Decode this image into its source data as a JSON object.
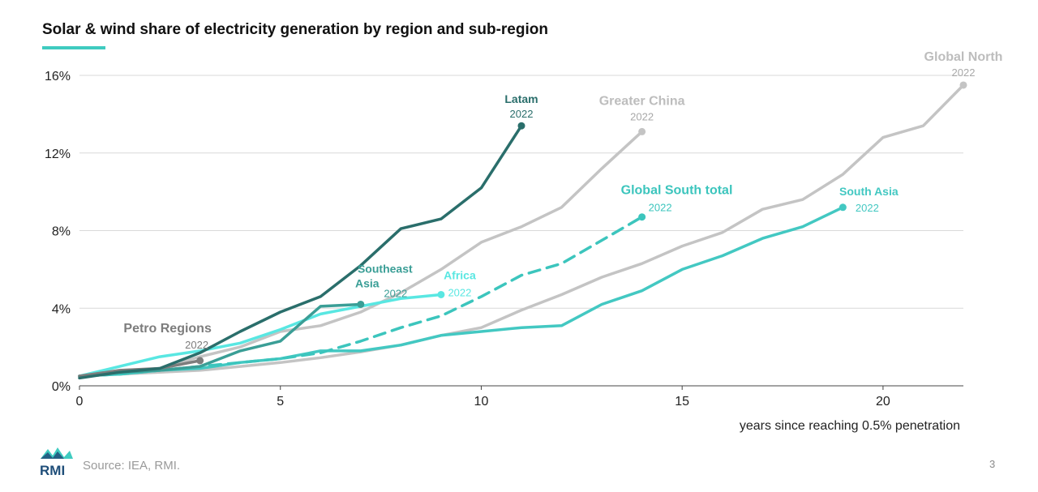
{
  "title": "Solar & wind share of electricity generation by region and sub-region",
  "source": "Source: IEA, RMI.",
  "page_number": "3",
  "logo_text": "RMI",
  "colors": {
    "accent": "#3fcbc0",
    "latam": "#2a6e6b",
    "southeast_asia": "#3a9e96",
    "africa": "#59e7e2",
    "global_south": "#3cc5bd",
    "south_asia": "#43c8c2",
    "gray": "#c2c2c2",
    "petro": "#7d7d7d"
  },
  "chart_data": {
    "type": "line",
    "title": "Solar & wind share of electricity generation by region and sub-region",
    "xlabel": "years since reaching 0.5% penetration",
    "ylabel": "",
    "xlim": [
      0,
      22
    ],
    "ylim": [
      0,
      16
    ],
    "x_ticks": [
      0,
      5,
      10,
      15,
      20
    ],
    "x_tick_labels": [
      "0",
      "5",
      "10",
      "15",
      "20"
    ],
    "y_ticks": [
      0,
      4,
      8,
      12,
      16
    ],
    "y_tick_labels": [
      "0%",
      "4%",
      "8%",
      "12%",
      "16%"
    ],
    "grid": "horizontal",
    "series": [
      {
        "id": "global-north",
        "name": "Global North",
        "year": "2022",
        "color": "#c4c4c4",
        "dashed": false,
        "x": [
          0,
          1,
          2,
          3,
          4,
          5,
          6,
          7,
          8,
          9,
          10,
          11,
          12,
          13,
          14,
          15,
          16,
          17,
          18,
          19,
          20,
          21,
          22
        ],
        "y": [
          0.5,
          0.6,
          0.7,
          0.8,
          1.0,
          1.2,
          1.45,
          1.75,
          2.1,
          2.6,
          3.0,
          3.9,
          4.7,
          5.6,
          6.3,
          7.2,
          7.9,
          9.1,
          9.6,
          10.9,
          12.8,
          13.4,
          15.5
        ]
      },
      {
        "id": "greater-china",
        "name": "Greater China",
        "year": "2022",
        "color": "#c4c4c4",
        "dashed": false,
        "x": [
          0,
          1,
          2,
          3,
          4,
          5,
          6,
          7,
          8,
          9,
          10,
          11,
          12,
          13,
          14
        ],
        "y": [
          0.5,
          0.7,
          0.9,
          1.5,
          2.0,
          2.8,
          3.1,
          3.8,
          4.8,
          6.0,
          7.4,
          8.2,
          9.2,
          11.2,
          13.1
        ]
      },
      {
        "id": "south-asia",
        "name": "South Asia",
        "year": "2022",
        "color": "#43c8c2",
        "dashed": false,
        "x": [
          0,
          1,
          2,
          3,
          4,
          5,
          6,
          7,
          8,
          9,
          10,
          11,
          12,
          13,
          14,
          15,
          16,
          17,
          18,
          19
        ],
        "y": [
          0.5,
          0.6,
          0.8,
          0.9,
          1.2,
          1.4,
          1.8,
          1.8,
          2.1,
          2.6,
          2.8,
          3.0,
          3.1,
          4.2,
          4.9,
          6.0,
          6.7,
          7.6,
          8.2,
          9.2
        ]
      },
      {
        "id": "global-south-total",
        "name": "Global South total",
        "year": "2022",
        "color": "#3cc5bd",
        "dashed": true,
        "x": [
          0,
          1,
          2,
          3,
          4,
          5,
          6,
          7,
          8,
          9,
          10,
          11,
          12,
          13,
          14
        ],
        "y": [
          0.5,
          0.6,
          0.8,
          1.0,
          1.2,
          1.4,
          1.7,
          2.3,
          3.0,
          3.6,
          4.6,
          5.7,
          6.3,
          7.5,
          8.7
        ]
      },
      {
        "id": "africa",
        "name": "Africa",
        "year": "2022",
        "color": "#59e7e2",
        "dashed": false,
        "x": [
          0,
          1,
          2,
          3,
          4,
          5,
          6,
          7,
          8,
          9
        ],
        "y": [
          0.5,
          1.0,
          1.5,
          1.8,
          2.2,
          2.9,
          3.7,
          4.1,
          4.5,
          4.7
        ]
      },
      {
        "id": "southeast-asia",
        "name": "Southeast\nAsia",
        "year": "2022",
        "color": "#3a9e96",
        "dashed": false,
        "x": [
          0,
          1,
          2,
          3,
          4,
          5,
          6,
          7
        ],
        "y": [
          0.5,
          0.7,
          0.8,
          1.0,
          1.8,
          2.3,
          4.1,
          4.2
        ]
      },
      {
        "id": "petro-regions",
        "name": "Petro Regions",
        "year": "2022",
        "color": "#7d7d7d",
        "dashed": false,
        "x": [
          0,
          1,
          2,
          3
        ],
        "y": [
          0.5,
          0.8,
          0.9,
          1.3
        ]
      },
      {
        "id": "latam",
        "name": "Latam",
        "year": "2022",
        "color": "#2a6e6b",
        "dashed": false,
        "x": [
          0,
          1,
          2,
          3,
          4,
          5,
          6,
          7,
          8,
          9,
          10,
          11
        ],
        "y": [
          0.4,
          0.7,
          0.9,
          1.7,
          2.8,
          3.8,
          4.6,
          6.2,
          8.1,
          8.6,
          10.2,
          13.4
        ]
      }
    ]
  }
}
